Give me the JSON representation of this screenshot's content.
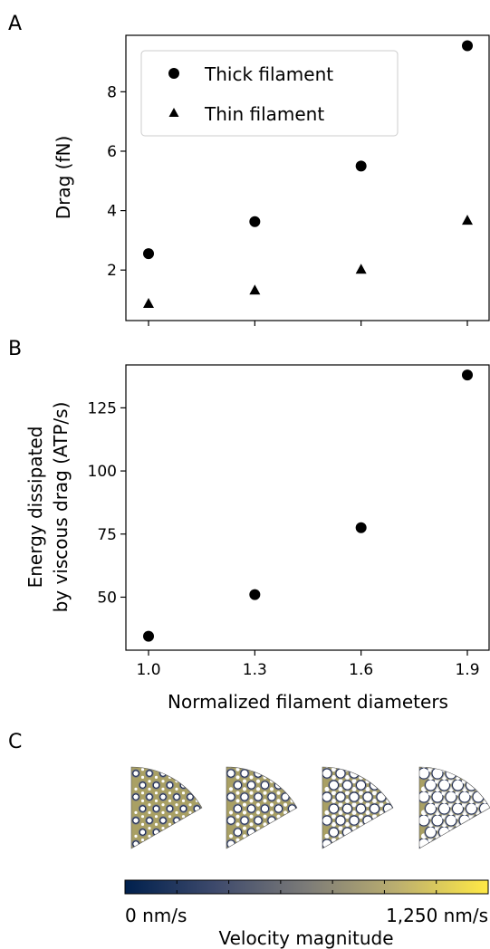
{
  "panels": {
    "a": "A",
    "b": "B",
    "c": "C"
  },
  "shared_xlabel": "Normalized filament diameters",
  "chart_data": [
    {
      "type": "scatter",
      "panel": "A",
      "x_ticks": [
        1.0,
        1.3,
        1.6,
        1.9
      ],
      "x_tick_labels_shown": false,
      "ylabel": "Drag (fN)",
      "yticks": [
        2,
        4,
        6,
        8
      ],
      "ylim": [
        0.3,
        9.9
      ],
      "legend_position": "upper-left",
      "series": [
        {
          "name": "Thick filament",
          "marker": "circle",
          "x": [
            1.0,
            1.3,
            1.6,
            1.9
          ],
          "y": [
            2.55,
            3.63,
            5.5,
            9.55
          ]
        },
        {
          "name": "Thin filament",
          "marker": "triangle",
          "x": [
            1.0,
            1.3,
            1.6,
            1.9
          ],
          "y": [
            0.88,
            1.33,
            2.03,
            3.68
          ]
        }
      ]
    },
    {
      "type": "scatter",
      "panel": "B",
      "xlabel": "Normalized filament diameters",
      "x_ticks": [
        1.0,
        1.3,
        1.6,
        1.9
      ],
      "x_tick_labels": [
        "1.0",
        "1.3",
        "1.6",
        "1.9"
      ],
      "ylabel": [
        "Energy dissipated",
        "by viscous drag (ATP/s)"
      ],
      "yticks": [
        50,
        75,
        100,
        125
      ],
      "ylim": [
        29,
        142
      ],
      "series": [
        {
          "marker": "circle",
          "x": [
            1.0,
            1.3,
            1.6,
            1.9
          ],
          "y": [
            34.5,
            51,
            77.5,
            138
          ]
        }
      ]
    }
  ],
  "colorbar": {
    "min_label": "0 nm/s",
    "max_label": "1,250 nm/s",
    "title": "Velocity magnitude",
    "colors": [
      "#00204d",
      "#3e4a6c",
      "#7c7b78",
      "#bcaf6f",
      "#ffe945"
    ]
  },
  "wedges": [
    {
      "normalized_diameter": 1.0
    },
    {
      "normalized_diameter": 1.3
    },
    {
      "normalized_diameter": 1.6
    },
    {
      "normalized_diameter": 1.9
    }
  ],
  "colors": {
    "marker": "#000000",
    "axis": "#000000"
  }
}
